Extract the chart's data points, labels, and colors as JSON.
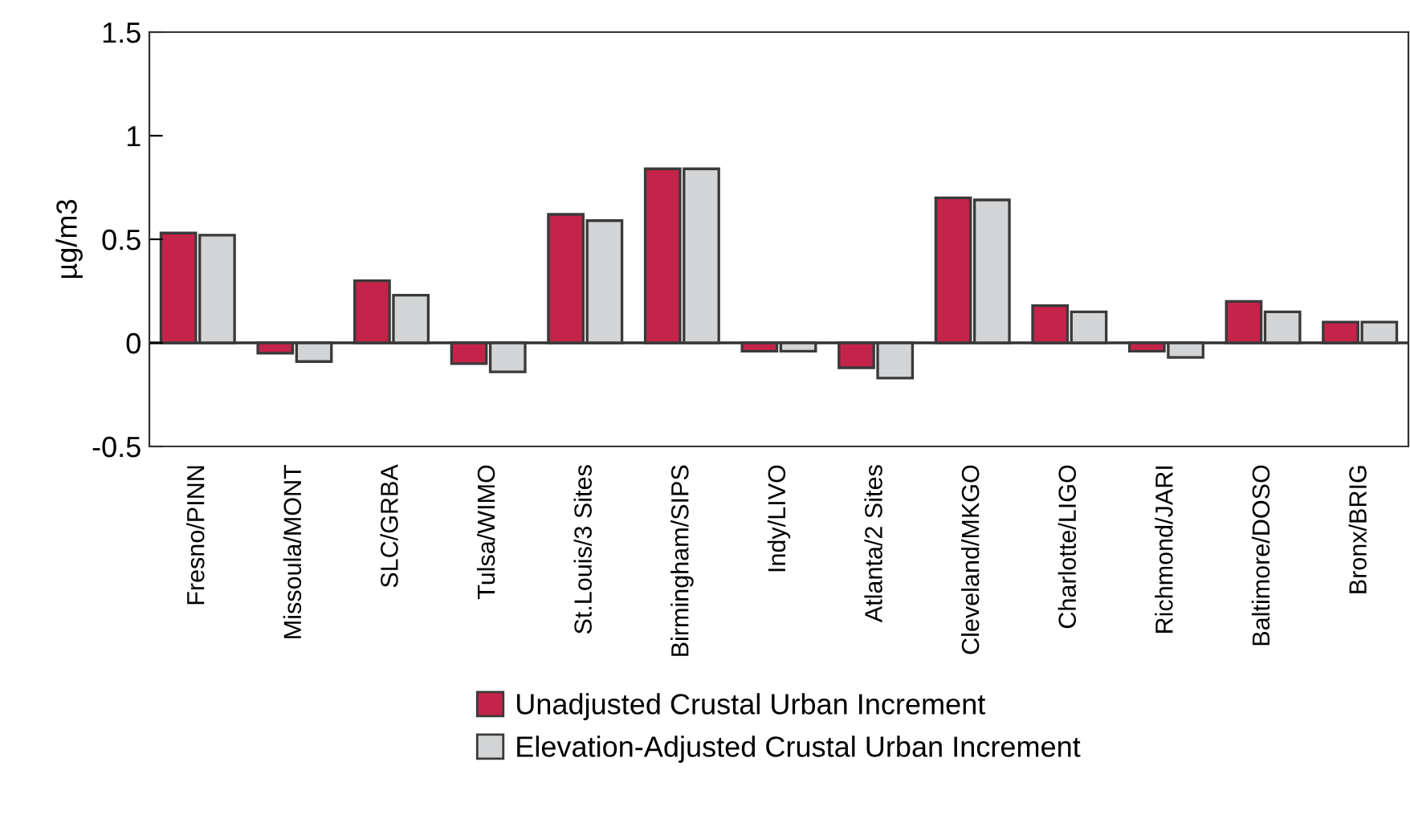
{
  "chart_data": {
    "type": "bar",
    "ylabel": "µg/m3",
    "categories": [
      "Fresno/PINN",
      "Missoula/MONT",
      "SLC/GRBA",
      "Tulsa/WIMO",
      "St.Louis/3 Sites",
      "Birmingham/SIPS",
      "Indy/LIVO",
      "Atlanta/2 Sites",
      "Cleveland/MKGO",
      "Charlotte/LIGO",
      "Richmond/JARI",
      "Baltimore/DOSO",
      "Bronx/BRIG"
    ],
    "series": [
      {
        "name": "Unadjusted Crustal Urban Increment",
        "color": "#c4244a",
        "values": [
          0.53,
          -0.05,
          0.3,
          -0.1,
          0.62,
          0.84,
          -0.04,
          -0.12,
          0.7,
          0.18,
          -0.04,
          0.2,
          0.1
        ]
      },
      {
        "name": "Elevation-Adjusted Crustal Urban Increment",
        "color": "#d3d4d5",
        "values": [
          0.52,
          -0.09,
          0.23,
          -0.14,
          0.59,
          0.84,
          -0.04,
          -0.17,
          0.69,
          0.15,
          -0.07,
          0.15,
          0.1
        ]
      }
    ],
    "ylim": [
      -0.5,
      1.5
    ],
    "yticks": [
      -0.5,
      0,
      0.5,
      1,
      1.5
    ],
    "ref_lines": [
      {
        "axis": "y",
        "value": 0,
        "color": "#333333"
      }
    ],
    "grid": false,
    "legend": "bottom"
  }
}
